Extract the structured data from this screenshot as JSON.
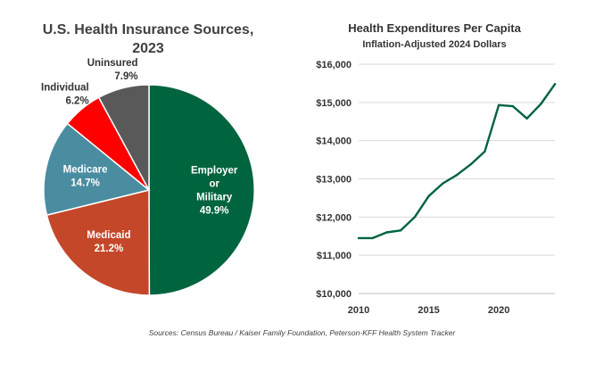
{
  "chart_data": [
    {
      "type": "pie",
      "title_lines": [
        "U.S. Health Insurance Sources,",
        "2023"
      ],
      "slices": [
        {
          "label_lines": [
            "Employer",
            "or",
            "Military"
          ],
          "value": 49.9,
          "value_label": "49.9%",
          "color": "#00643F",
          "label_color": "#ffffff",
          "label_inside": true
        },
        {
          "label_lines": [
            "Medicaid"
          ],
          "value": 21.2,
          "value_label": "21.2%",
          "color": "#C4472A",
          "label_color": "#ffffff",
          "label_inside": true
        },
        {
          "label_lines": [
            "Medicare"
          ],
          "value": 14.7,
          "value_label": "14.7%",
          "color": "#4A8CA0",
          "label_color": "#ffffff",
          "label_inside": true
        },
        {
          "label_lines": [
            "Individual"
          ],
          "value": 6.2,
          "value_label": "6.2%",
          "color": "#FF0000",
          "label_color": "#333333",
          "label_inside": false
        },
        {
          "label_lines": [
            "Uninsured"
          ],
          "value": 7.9,
          "value_label": "7.9%",
          "color": "#595959",
          "label_color": "#333333",
          "label_inside": false
        }
      ]
    },
    {
      "type": "line",
      "title": "Health Expenditures Per Capita",
      "subtitle": "Inflation-Adjusted 2024 Dollars",
      "xlabel": "",
      "ylabel": "",
      "xlim": [
        2010,
        2024
      ],
      "ylim": [
        10000,
        16000
      ],
      "xticks": [
        2010,
        2015,
        2020
      ],
      "xtick_labels": [
        "2010",
        "2015",
        "2020"
      ],
      "yticks": [
        10000,
        11000,
        12000,
        13000,
        14000,
        15000,
        16000
      ],
      "ytick_labels": [
        "$10,000",
        "$11,000",
        "$12,000",
        "$13,000",
        "$14,000",
        "$15,000",
        "$16,000"
      ],
      "grid": true,
      "line_color": "#00643F",
      "series": [
        {
          "x": [
            2010,
            2011,
            2012,
            2013,
            2014,
            2015,
            2016,
            2017,
            2018,
            2019,
            2020,
            2021,
            2022,
            2023,
            2024
          ],
          "values": [
            11450,
            11450,
            11600,
            11650,
            12000,
            12550,
            12880,
            13100,
            13380,
            13720,
            14930,
            14900,
            14580,
            14960,
            15480
          ]
        }
      ]
    }
  ],
  "source_note": "Sources: Census Bureau / Kaiser Family Foundation, Peterson-KFF Health System Tracker"
}
